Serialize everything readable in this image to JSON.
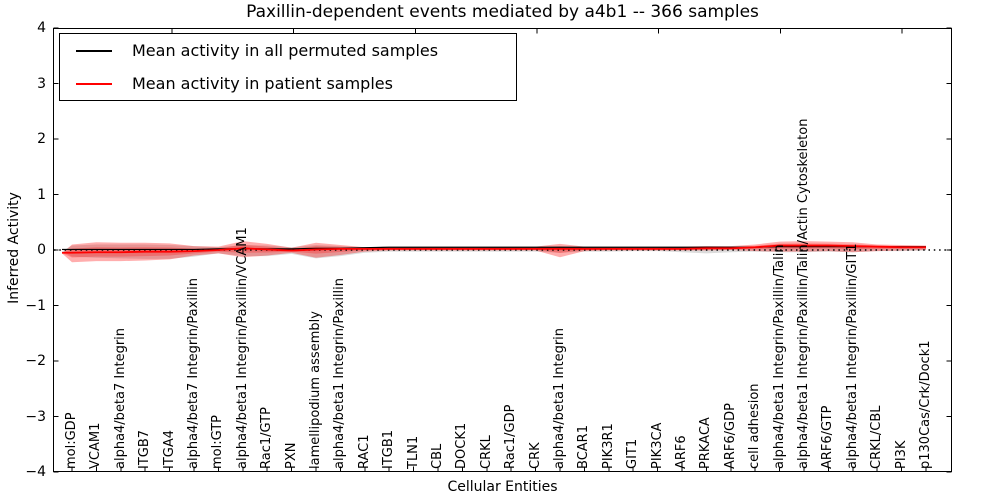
{
  "title": "Paxillin-dependent events mediated by a4b1 -- 366 samples",
  "axes": {
    "x_label": "Cellular Entities",
    "y_label": "Inferred Activity",
    "y_ticks": [
      "4",
      "3",
      "2",
      "1",
      "0",
      "−1",
      "−2",
      "−3",
      "−4"
    ],
    "y_tick_values": [
      4,
      3,
      2,
      1,
      0,
      -1,
      -2,
      -3,
      -4
    ]
  },
  "legend": {
    "items": [
      {
        "label": "Mean activity in all permuted samples",
        "color": "#000000"
      },
      {
        "label": "Mean activity in patient samples",
        "color": "#ff0000"
      }
    ]
  },
  "chart_data": {
    "type": "line",
    "title": "Paxillin-dependent events mediated by a4b1 -- 366 samples",
    "xlabel": "Cellular Entities",
    "ylabel": "Inferred Activity",
    "ylim": [
      -4,
      4
    ],
    "grid": false,
    "legend_position": "upper left",
    "zero_line": 0,
    "categories": [
      "mol:GDP",
      "VCAM1",
      "alpha4/beta7 Integrin",
      "ITGB7",
      "ITGA4",
      "alpha4/beta7 Integrin/Paxillin",
      "mol:GTP",
      "alpha4/beta1 Integrin/Paxillin/VCAM1",
      "Rac1/GTP",
      "PXN",
      "lamellipodium assembly",
      "alpha4/beta1 Integrin/Paxillin",
      "RAC1",
      "ITGB1",
      "TLN1",
      "CBL",
      "DOCK1",
      "CRKL",
      "Rac1/GDP",
      "CRK",
      "alpha4/beta1 Integrin",
      "BCAR1",
      "PIK3R1",
      "GIT1",
      "PIK3CA",
      "ARF6",
      "PRKACA",
      "ARF6/GDP",
      "cell adhesion",
      "alpha4/beta1 Integrin/Paxillin/Talin",
      "alpha4/beta1 Integrin/Paxillin/Talin/Actin Cytoskeleton",
      "ARF6/GTP",
      "alpha4/beta1 Integrin/Paxillin/GIT1",
      "CRKL/CBL",
      "PI3K",
      "p130Cas/Crk/Dock1"
    ],
    "series": [
      {
        "name": "Mean activity in all permuted samples",
        "color": "#000000",
        "width": 1.2,
        "values": [
          0.01,
          0.01,
          0.01,
          0.01,
          0.01,
          0.01,
          0.02,
          0.02,
          0.02,
          0.02,
          0.03,
          0.03,
          0.04,
          0.05,
          0.05,
          0.05,
          0.05,
          0.05,
          0.05,
          0.05,
          0.05,
          0.05,
          0.05,
          0.05,
          0.05,
          0.05,
          0.05,
          0.05,
          0.05,
          0.06,
          0.06,
          0.06,
          0.06,
          0.06,
          0.06,
          0.06
        ]
      },
      {
        "name": "Mean activity in patient samples",
        "color": "#ff0000",
        "width": 1.8,
        "values": [
          -0.05,
          -0.04,
          -0.04,
          -0.03,
          -0.03,
          -0.02,
          0.0,
          0.03,
          0.01,
          -0.01,
          0.01,
          0.02,
          0.02,
          0.02,
          0.02,
          0.02,
          0.02,
          0.02,
          0.02,
          0.02,
          0.02,
          0.02,
          0.02,
          0.02,
          0.02,
          0.02,
          0.03,
          0.03,
          0.05,
          0.08,
          0.08,
          0.08,
          0.07,
          0.06,
          0.05,
          0.05
        ]
      }
    ],
    "bands": [
      {
        "name": "permuted-samples-range",
        "color": "#888888",
        "opacity": 0.3,
        "upper": [
          0.08,
          0.1,
          0.1,
          0.1,
          0.09,
          0.07,
          0.05,
          0.09,
          0.08,
          0.05,
          0.09,
          0.07,
          0.05,
          0.04,
          0.04,
          0.04,
          0.04,
          0.04,
          0.04,
          0.04,
          0.06,
          0.04,
          0.04,
          0.04,
          0.04,
          0.05,
          0.07,
          0.06,
          0.06,
          0.08,
          0.08,
          0.08,
          0.08,
          0.06,
          0.05,
          0.05
        ],
        "lower": [
          -0.12,
          -0.14,
          -0.15,
          -0.16,
          -0.16,
          -0.12,
          -0.06,
          -0.11,
          -0.11,
          -0.07,
          -0.15,
          -0.11,
          -0.05,
          -0.03,
          -0.03,
          -0.03,
          -0.03,
          -0.03,
          -0.03,
          -0.03,
          -0.05,
          -0.03,
          -0.03,
          -0.02,
          -0.02,
          -0.04,
          -0.06,
          -0.04,
          -0.03,
          -0.04,
          -0.04,
          -0.03,
          -0.04,
          -0.02,
          -0.02,
          -0.01
        ]
      },
      {
        "name": "patient-samples-range",
        "color": "#ff0000",
        "opacity": 0.32,
        "upper": [
          0.1,
          0.14,
          0.13,
          0.13,
          0.12,
          0.07,
          0.06,
          0.16,
          0.11,
          0.04,
          0.13,
          0.09,
          0.05,
          0.06,
          0.06,
          0.06,
          0.06,
          0.06,
          0.06,
          0.06,
          0.11,
          0.06,
          0.06,
          0.06,
          0.06,
          0.06,
          0.07,
          0.07,
          0.1,
          0.15,
          0.16,
          0.15,
          0.14,
          0.1,
          0.09,
          0.08
        ],
        "lower": [
          -0.22,
          -0.2,
          -0.2,
          -0.19,
          -0.17,
          -0.1,
          -0.06,
          -0.13,
          -0.1,
          -0.05,
          -0.14,
          -0.09,
          -0.03,
          -0.01,
          -0.01,
          -0.01,
          -0.01,
          -0.01,
          -0.01,
          -0.01,
          -0.13,
          -0.02,
          -0.01,
          -0.01,
          -0.01,
          -0.01,
          -0.01,
          0.0,
          -0.02,
          -0.03,
          -0.03,
          -0.02,
          -0.04,
          -0.02,
          -0.01,
          0.0
        ]
      }
    ]
  }
}
